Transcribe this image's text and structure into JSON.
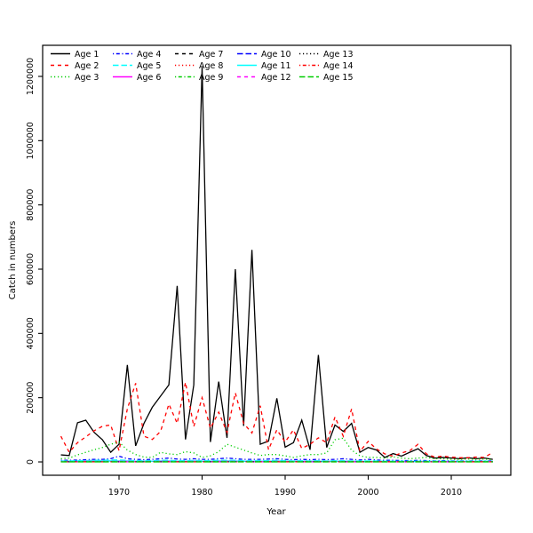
{
  "chart_data": {
    "type": "line",
    "title": "",
    "xlabel": "Year",
    "ylabel": "Catch in numbers",
    "xlim": [
      1963,
      2015
    ],
    "ylim": [
      0,
      1230000
    ],
    "grid": false,
    "legend_position": "top-left-inside",
    "legend_columns": 5,
    "x_ticks": [
      1970,
      1980,
      1990,
      2000,
      2010
    ],
    "y_ticks": [
      0,
      200000,
      400000,
      600000,
      800000,
      1000000,
      1200000
    ],
    "y_tick_labels": [
      "0",
      "200000",
      "400000",
      "600000",
      "800000",
      "1000000",
      "1200000"
    ],
    "years": [
      1963,
      1964,
      1965,
      1966,
      1967,
      1968,
      1969,
      1970,
      1971,
      1972,
      1973,
      1974,
      1975,
      1976,
      1977,
      1978,
      1979,
      1980,
      1981,
      1982,
      1983,
      1984,
      1985,
      1986,
      1987,
      1988,
      1989,
      1990,
      1991,
      1992,
      1993,
      1994,
      1995,
      1996,
      1997,
      1998,
      1999,
      2000,
      2001,
      2002,
      2003,
      2004,
      2005,
      2006,
      2007,
      2008,
      2009,
      2010,
      2011,
      2012,
      2013,
      2014,
      2015
    ],
    "series": [
      {
        "name": "Age 1",
        "color": "#000000",
        "lty": "solid",
        "values": [
          22000,
          20000,
          122000,
          130000,
          92000,
          69000,
          30000,
          55000,
          302000,
          50000,
          120000,
          170000,
          205000,
          240000,
          548000,
          70000,
          240000,
          1230000,
          62000,
          250000,
          75000,
          600000,
          112000,
          660000,
          55000,
          65000,
          198000,
          46000,
          60000,
          130000,
          38000,
          333000,
          45000,
          115000,
          95000,
          120000,
          30000,
          45000,
          37000,
          14000,
          26000,
          18000,
          30000,
          41000,
          20000,
          12000,
          14000,
          12000,
          10000,
          13000,
          10000,
          12000,
          8000
        ]
      },
      {
        "name": "Age 2",
        "color": "#FF0000",
        "lty": "dashed",
        "values": [
          80000,
          30000,
          60000,
          78000,
          97000,
          111000,
          115000,
          35000,
          165000,
          245000,
          80000,
          70000,
          95000,
          180000,
          120000,
          248000,
          110000,
          200000,
          105000,
          155000,
          92000,
          215000,
          120000,
          90000,
          175000,
          38000,
          100000,
          62000,
          100000,
          42000,
          55000,
          75000,
          60000,
          140000,
          80000,
          165000,
          33000,
          64000,
          40000,
          25000,
          18000,
          28000,
          35000,
          55000,
          25000,
          15000,
          18000,
          15000,
          13000,
          13000,
          15000,
          14000,
          30000
        ]
      },
      {
        "name": "Age 3",
        "color": "#00CD00",
        "lty": "dotted",
        "values": [
          10000,
          12000,
          22000,
          30000,
          38000,
          45000,
          55000,
          62000,
          37000,
          23000,
          15000,
          14000,
          30000,
          25000,
          23000,
          32000,
          28000,
          14000,
          19000,
          32000,
          55000,
          46000,
          37000,
          28000,
          20000,
          23000,
          23000,
          19000,
          14000,
          19000,
          23000,
          23000,
          28000,
          69000,
          74000,
          37000,
          19000,
          14000,
          14000,
          12000,
          16000,
          12000,
          10000,
          12000,
          14000,
          10000,
          10000,
          8000,
          8000,
          9000,
          8000,
          9000,
          7000
        ]
      },
      {
        "name": "Age 4",
        "color": "#0000FF",
        "lty": "dotdash",
        "values": [
          5000,
          5000,
          6000,
          7000,
          8000,
          8000,
          10000,
          18000,
          10000,
          8000,
          7000,
          8000,
          10000,
          12000,
          9000,
          8000,
          10000,
          8000,
          8000,
          10000,
          12000,
          10000,
          8000,
          8000,
          8000,
          9000,
          10000,
          8000,
          7000,
          8000,
          7000,
          8000,
          7000,
          8000,
          10000,
          8000,
          6000,
          8000,
          6000,
          5000,
          5000,
          4000,
          4000,
          5000,
          4000,
          3000,
          4000,
          3000,
          3000,
          3000,
          3000,
          3000,
          3000
        ]
      },
      {
        "name": "Age 5",
        "color": "#00FFFF",
        "lty": "longdash",
        "values": [
          3000,
          3000,
          4000,
          4000,
          5000,
          5000,
          6000,
          6000,
          5000,
          4000,
          4000,
          4000,
          5000,
          5000,
          4000,
          4000,
          5000,
          4000,
          4000,
          5000,
          5000,
          5000,
          4000,
          4000,
          4000,
          4000,
          5000,
          4000,
          3000,
          4000,
          3000,
          4000,
          3000,
          4000,
          4000,
          3000,
          3000,
          3000,
          3000,
          2000,
          2000,
          2000,
          2000,
          2000,
          2000,
          2000,
          2000,
          2000,
          2000,
          2000,
          2000,
          2000,
          2000
        ]
      },
      {
        "name": "Age 6",
        "color": "#FF00FF",
        "lty": "solid",
        "values": [
          2000,
          2000,
          2000,
          3000,
          3000,
          3000,
          3000,
          3000,
          3000,
          2000,
          2000,
          2000,
          3000,
          3000,
          2000,
          2000,
          3000,
          2000,
          2000,
          3000,
          3000,
          3000,
          2000,
          2000,
          2000,
          2000,
          3000,
          2000,
          2000,
          2000,
          2000,
          2000,
          2000,
          2000,
          2000,
          2000,
          1000,
          1000,
          1000,
          1000,
          1000,
          1000,
          1000,
          1000,
          1000,
          1000,
          1000,
          1000,
          1000,
          1000,
          1000,
          1000,
          1000
        ]
      },
      {
        "name": "Age 7",
        "color": "#000000",
        "lty": "dashed",
        "values": [
          1000,
          1000,
          1000,
          2000,
          2000,
          2000,
          2000,
          2000,
          2000,
          1000,
          1000,
          1000,
          2000,
          2000,
          1000,
          1000,
          2000,
          1000,
          1000,
          2000,
          2000,
          2000,
          1000,
          1000,
          1000,
          1000,
          2000,
          1000,
          1000,
          1000,
          1000,
          1000,
          1000,
          1000,
          1000,
          1000,
          1000,
          1000,
          1000,
          1000,
          1000,
          1000,
          1000,
          1000,
          1000,
          1000,
          1000,
          1000,
          1000,
          1000,
          1000,
          1000,
          1000
        ]
      },
      {
        "name": "Age 8",
        "color": "#FF0000",
        "lty": "dotted",
        "values": [
          1000,
          1000,
          1000,
          1000,
          1000,
          2000,
          2000,
          2000,
          1000,
          1000,
          1000,
          1000,
          1000,
          1000,
          1000,
          1000,
          1000,
          1000,
          1000,
          1000,
          2000,
          2000,
          1000,
          1000,
          1000,
          1000,
          1000,
          1000,
          1000,
          1000,
          1000,
          1000,
          1000,
          1000,
          1000,
          1000,
          1000,
          1000,
          1000,
          1000,
          1000,
          1000,
          1000,
          1000,
          1000,
          1000,
          1000,
          1000,
          1000,
          1000,
          1000,
          1000,
          1000
        ]
      },
      {
        "name": "Age 9",
        "color": "#00CD00",
        "lty": "dotdash",
        "values": [
          800,
          800,
          800,
          800,
          800,
          1000,
          1000,
          1000,
          800,
          800,
          800,
          800,
          800,
          800,
          800,
          800,
          800,
          800,
          800,
          800,
          1000,
          1000,
          800,
          800,
          800,
          800,
          800,
          800,
          800,
          800,
          800,
          800,
          800,
          800,
          800,
          800,
          800,
          800,
          800,
          800,
          800,
          800,
          800,
          800,
          800,
          800,
          800,
          800,
          800,
          800,
          800,
          800,
          800
        ]
      },
      {
        "name": "Age 10",
        "color": "#0000FF",
        "lty": "longdash",
        "values": [
          500,
          500,
          500,
          500,
          500,
          500,
          500,
          500,
          500,
          500,
          500,
          500,
          500,
          500,
          500,
          500,
          500,
          500,
          500,
          500,
          500,
          500,
          500,
          500,
          500,
          500,
          500,
          500,
          500,
          500,
          500,
          500,
          500,
          500,
          500,
          500,
          500,
          500,
          500,
          500,
          500,
          500,
          500,
          500,
          500,
          500,
          500,
          500,
          500,
          500,
          500,
          500,
          500
        ]
      },
      {
        "name": "Age 11",
        "color": "#00FFFF",
        "lty": "solid",
        "values": [
          2000,
          2000,
          2500,
          2500,
          3000,
          3000,
          3000,
          2500,
          2500,
          2000,
          2000,
          2000,
          2500,
          2500,
          2000,
          2000,
          2500,
          2000,
          2000,
          2500,
          2500,
          2500,
          2000,
          2000,
          2000,
          2000,
          2500,
          2000,
          2000,
          2000,
          2000,
          2000,
          2000,
          2000,
          2000,
          2000,
          1500,
          1500,
          1500,
          1500,
          1500,
          1500,
          1500,
          1500,
          1500,
          1500,
          1500,
          1500,
          1500,
          1500,
          1500,
          1500,
          1500
        ]
      },
      {
        "name": "Age 12",
        "color": "#FF00FF",
        "lty": "dashed",
        "values": [
          400,
          400,
          400,
          400,
          400,
          400,
          400,
          400,
          400,
          400,
          400,
          400,
          400,
          400,
          400,
          400,
          400,
          400,
          400,
          400,
          400,
          400,
          400,
          400,
          400,
          400,
          400,
          400,
          400,
          400,
          400,
          400,
          400,
          400,
          400,
          400,
          400,
          400,
          400,
          400,
          400,
          400,
          400,
          400,
          400,
          400,
          400,
          400,
          400,
          400,
          400,
          400,
          400
        ]
      },
      {
        "name": "Age 13",
        "color": "#000000",
        "lty": "dotted",
        "values": [
          300,
          300,
          300,
          300,
          300,
          300,
          300,
          300,
          300,
          300,
          300,
          300,
          300,
          300,
          300,
          300,
          300,
          300,
          300,
          300,
          300,
          300,
          300,
          300,
          300,
          300,
          300,
          300,
          300,
          300,
          300,
          300,
          300,
          300,
          300,
          300,
          300,
          300,
          300,
          300,
          300,
          300,
          300,
          300,
          300,
          300,
          300,
          300,
          300,
          300,
          300,
          300,
          300
        ]
      },
      {
        "name": "Age 14",
        "color": "#FF0000",
        "lty": "dotdash",
        "values": [
          300,
          300,
          300,
          300,
          300,
          300,
          300,
          300,
          300,
          300,
          300,
          300,
          300,
          300,
          300,
          300,
          300,
          300,
          300,
          300,
          300,
          300,
          300,
          300,
          300,
          300,
          300,
          300,
          300,
          300,
          300,
          300,
          300,
          300,
          300,
          300,
          300,
          300,
          300,
          300,
          300,
          300,
          300,
          300,
          300,
          300,
          300,
          300,
          300,
          300,
          300,
          300,
          300
        ]
      },
      {
        "name": "Age 15",
        "color": "#00CD00",
        "lty": "longdash",
        "values": [
          200,
          200,
          200,
          200,
          200,
          200,
          200,
          200,
          200,
          200,
          200,
          200,
          200,
          200,
          200,
          200,
          200,
          200,
          200,
          200,
          200,
          200,
          200,
          200,
          200,
          200,
          200,
          200,
          200,
          200,
          200,
          200,
          200,
          200,
          200,
          200,
          200,
          200,
          200,
          200,
          200,
          200,
          200,
          200,
          200,
          200,
          200,
          200,
          200,
          200,
          200,
          200,
          200
        ]
      }
    ]
  }
}
